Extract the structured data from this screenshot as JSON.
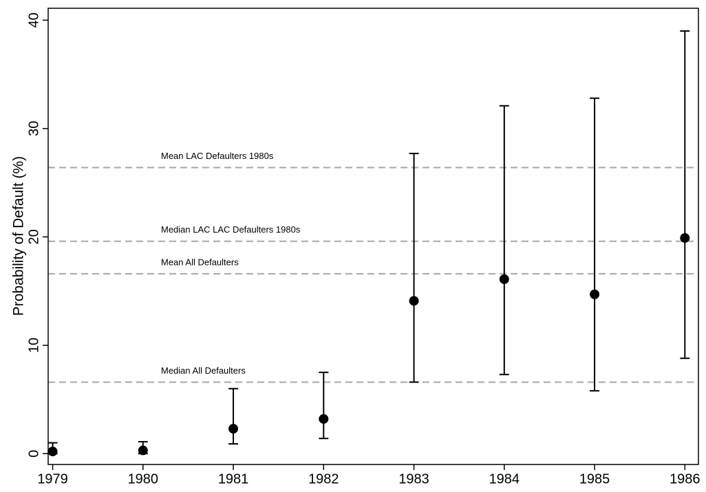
{
  "chart_data": {
    "type": "errorbar",
    "y_label": "Probability of Default (%)",
    "x": [
      1979,
      1980,
      1981,
      1982,
      1983,
      1984,
      1985,
      1986
    ],
    "values": [
      0.2,
      0.3,
      2.3,
      3.2,
      14.1,
      16.1,
      14.7,
      19.9
    ],
    "lower": [
      0.0,
      0.0,
      0.9,
      1.4,
      6.6,
      7.3,
      5.8,
      8.8
    ],
    "upper": [
      1.0,
      1.1,
      6.0,
      7.5,
      27.7,
      32.1,
      32.8,
      39.0
    ],
    "color": "#000000",
    "reference_lines": [
      {
        "label": "Mean LAC Defaulters 1980s",
        "value": 26.4
      },
      {
        "label": "Median LAC LAC Defaulters 1980s",
        "value": 19.6
      },
      {
        "label": "Mean All Defaulters",
        "value": 16.6
      },
      {
        "label": "Median All Defaulters",
        "value": 6.6
      }
    ],
    "reference_color": "#a6a6a6",
    "xlim": [
      1978.95,
      1986.15
    ],
    "ylim": [
      -1.0,
      41.1
    ],
    "xticks": [
      1979,
      1980,
      1981,
      1982,
      1983,
      1984,
      1985,
      1986
    ],
    "yticks": [
      0,
      10,
      20,
      30,
      40
    ]
  }
}
